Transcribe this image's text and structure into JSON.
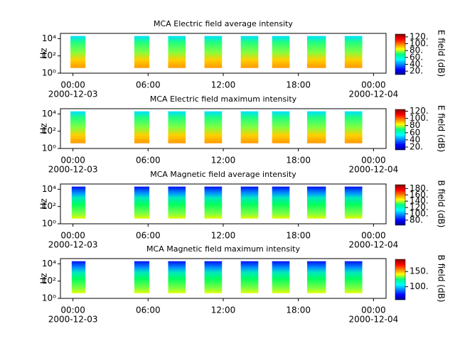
{
  "chart_data": [
    {
      "type": "spectrogram",
      "title": "MCA  Electric field average intensity",
      "ylabel": "Hz",
      "colorbar_label": "E field (dB)",
      "xlim": [
        -1,
        25
      ],
      "xticks": [
        {
          "value": 0,
          "label": "00:00"
        },
        {
          "value": 6,
          "label": "06:00"
        },
        {
          "value": 12,
          "label": "12:00"
        },
        {
          "value": 18,
          "label": "18:00"
        },
        {
          "value": 24,
          "label": "00:00"
        }
      ],
      "date_labels": [
        {
          "value": 0,
          "label": "2000-12-03"
        },
        {
          "value": 24,
          "label": "2000-12-04"
        }
      ],
      "ylim": [
        1,
        40000
      ],
      "log_y": true,
      "yticks": [
        {
          "value": 1,
          "label": "10⁰"
        },
        {
          "value": 100,
          "label": "10²"
        },
        {
          "value": 10000,
          "label": "10⁴"
        }
      ],
      "freq_range": [
        4,
        20000
      ],
      "segments": [
        [
          -0.2,
          1.0
        ],
        [
          4.9,
          6.1
        ],
        [
          7.6,
          9.0
        ],
        [
          10.5,
          11.9
        ],
        [
          13.4,
          14.8
        ],
        [
          15.9,
          17.3
        ],
        [
          18.7,
          20.2
        ],
        [
          21.7,
          23.1
        ]
      ],
      "clim": [
        10,
        128
      ],
      "cticks": [
        {
          "value": 20,
          "label": "20."
        },
        {
          "value": 40,
          "label": "40."
        },
        {
          "value": 60,
          "label": "60."
        },
        {
          "value": 80,
          "label": "80."
        },
        {
          "value": 100,
          "label": "100."
        },
        {
          "value": 120,
          "label": "120."
        }
      ]
    },
    {
      "type": "spectrogram",
      "title": "MCA  Electric field maximum intensity",
      "ylabel": "Hz",
      "colorbar_label": "E field (dB)",
      "xlim": [
        -1,
        25
      ],
      "xticks": [
        {
          "value": 0,
          "label": "00:00"
        },
        {
          "value": 6,
          "label": "06:00"
        },
        {
          "value": 12,
          "label": "12:00"
        },
        {
          "value": 18,
          "label": "18:00"
        },
        {
          "value": 24,
          "label": "00:00"
        }
      ],
      "date_labels": [
        {
          "value": 0,
          "label": "2000-12-03"
        },
        {
          "value": 24,
          "label": "2000-12-04"
        }
      ],
      "ylim": [
        1,
        40000
      ],
      "log_y": true,
      "yticks": [
        {
          "value": 1,
          "label": "10⁰"
        },
        {
          "value": 100,
          "label": "10²"
        },
        {
          "value": 10000,
          "label": "10⁴"
        }
      ],
      "freq_range": [
        4,
        20000
      ],
      "segments": [
        [
          -0.2,
          1.0
        ],
        [
          4.9,
          6.1
        ],
        [
          7.6,
          9.0
        ],
        [
          10.5,
          11.9
        ],
        [
          13.4,
          14.8
        ],
        [
          15.9,
          17.3
        ],
        [
          18.7,
          20.2
        ],
        [
          21.7,
          23.1
        ]
      ],
      "clim": [
        12,
        125
      ],
      "cticks": [
        {
          "value": 20,
          "label": "20."
        },
        40,
        60,
        80,
        {
          "value": 100,
          "label": "100."
        },
        {
          "value": 120,
          "label": "120."
        }
      ]
    },
    {
      "type": "spectrogram",
      "title": "MCA  Magnetic field average intensity",
      "ylabel": "Hz",
      "colorbar_label": "B field (dB)",
      "xlim": [
        -1,
        25
      ],
      "xticks": [
        {
          "value": 0,
          "label": "00:00"
        },
        {
          "value": 6,
          "label": "06:00"
        },
        {
          "value": 12,
          "label": "12:00"
        },
        {
          "value": 18,
          "label": "18:00"
        },
        {
          "value": 24,
          "label": "00:00"
        }
      ],
      "date_labels": [
        {
          "value": 0,
          "label": "2000-12-03"
        },
        {
          "value": 24,
          "label": "2000-12-04"
        }
      ],
      "ylim": [
        1,
        40000
      ],
      "log_y": true,
      "yticks": [
        {
          "value": 1,
          "label": "10⁰"
        },
        {
          "value": 100,
          "label": "10²"
        },
        {
          "value": 10000,
          "label": "10⁴"
        }
      ],
      "freq_range": [
        4,
        20000
      ],
      "segments": [
        [
          -0.1,
          1.0
        ],
        [
          4.9,
          6.1
        ],
        [
          7.6,
          9.0
        ],
        [
          10.5,
          11.9
        ],
        [
          13.4,
          14.8
        ],
        [
          15.9,
          17.3
        ],
        [
          18.7,
          20.2
        ],
        [
          21.7,
          23.1
        ]
      ],
      "clim": [
        64,
        192
      ],
      "cticks": [
        {
          "value": 80,
          "label": "80."
        },
        {
          "value": 100,
          "label": "100."
        },
        {
          "value": 120,
          "label": "120."
        },
        {
          "value": 140,
          "label": "140."
        },
        {
          "value": 160,
          "label": "160."
        },
        {
          "value": 180,
          "label": "180."
        }
      ]
    },
    {
      "type": "spectrogram",
      "title": "MCA  Magnetic field maximum intensity",
      "ylabel": "Hz",
      "colorbar_label": "B field (dB)",
      "xlim": [
        -1,
        25
      ],
      "xticks": [
        {
          "value": 0,
          "label": "00:00"
        },
        {
          "value": 6,
          "label": "06:00"
        },
        {
          "value": 12,
          "label": "12:00"
        },
        {
          "value": 18,
          "label": "18:00"
        },
        {
          "value": 24,
          "label": "00:00"
        }
      ],
      "date_labels": [
        {
          "value": 0,
          "label": "2000-12-03"
        },
        {
          "value": 24,
          "label": "2000-12-04"
        }
      ],
      "ylim": [
        1,
        40000
      ],
      "log_y": true,
      "yticks": [
        {
          "value": 1,
          "label": "10⁰"
        },
        {
          "value": 100,
          "label": "10²"
        },
        {
          "value": 10000,
          "label": "10⁴"
        }
      ],
      "freq_range": [
        4,
        20000
      ],
      "segments": [
        [
          -0.1,
          1.0
        ],
        [
          4.9,
          6.1
        ],
        [
          7.6,
          9.0
        ],
        [
          10.5,
          11.9
        ],
        [
          13.4,
          14.8
        ],
        [
          15.9,
          17.3
        ],
        [
          18.7,
          20.2
        ],
        [
          21.7,
          23.1
        ]
      ],
      "clim": [
        57,
        190
      ],
      "cticks": [
        {
          "value": 100,
          "label": "100."
        },
        {
          "value": 150,
          "label": "150."
        }
      ]
    }
  ]
}
